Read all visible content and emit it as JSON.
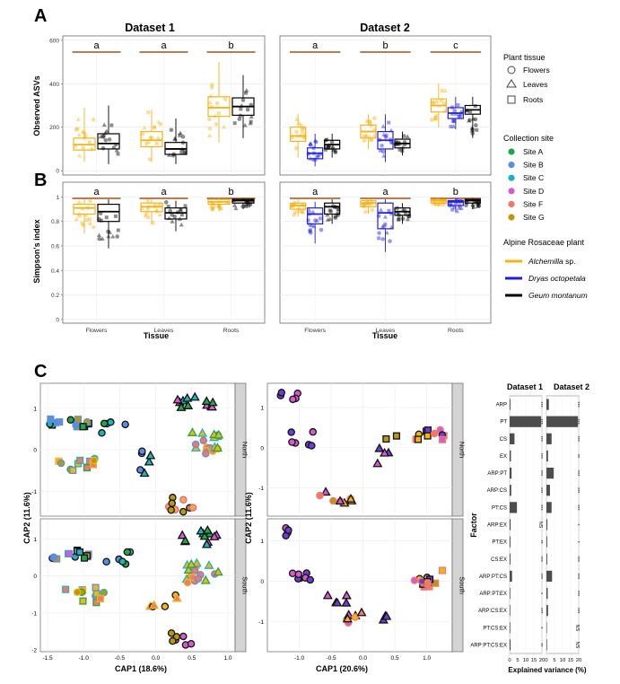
{
  "panel_labels": {
    "a": "A",
    "b": "B",
    "c": "C"
  },
  "legend": {
    "plant_tissue_title": "Plant tissue",
    "tissues": [
      "Flowers",
      "Leaves",
      "Roots"
    ],
    "site_title": "Collection site",
    "sites": [
      {
        "label": "Site A",
        "color": "#1fa64a"
      },
      {
        "label": "Site B",
        "color": "#5b8fdc"
      },
      {
        "label": "Site C",
        "color": "#22b2b6"
      },
      {
        "label": "Site D",
        "color": "#d75bd0"
      },
      {
        "label": "Site F",
        "color": "#f07a6a"
      },
      {
        "label": "Site G",
        "color": "#b8990e"
      }
    ],
    "plant_title": "Alpine Rosaceae plant",
    "plants": [
      {
        "label": "Alchemilla",
        "suffix": " sp.",
        "color": "#f5b31a"
      },
      {
        "label": "Dryas octopetala",
        "suffix": "",
        "color": "#1f1fd6"
      },
      {
        "label": "Geum montanum",
        "suffix": "",
        "color": "#000000"
      }
    ]
  },
  "chart_data": [
    {
      "type": "box",
      "id": "A",
      "ylabel": "Observed ASVs",
      "xlabel": "Tissue",
      "ylim": [
        -20,
        620
      ],
      "yticks": [
        0,
        200,
        400,
        600
      ],
      "facets": [
        {
          "title": "Dataset 1",
          "categories": [
            "Flowers",
            "Leaves",
            "Roots"
          ],
          "letters": [
            "a",
            "a",
            "b"
          ],
          "boxes": [
            {
              "tissue": "Flowers",
              "plant": "Alchemilla",
              "q1": 95,
              "med": 120,
              "q3": 150,
              "lo": 40,
              "hi": 290
            },
            {
              "tissue": "Flowers",
              "plant": "Geum montanum",
              "q1": 100,
              "med": 125,
              "q3": 170,
              "lo": 30,
              "hi": 300
            },
            {
              "tissue": "Leaves",
              "plant": "Alchemilla",
              "q1": 110,
              "med": 140,
              "q3": 180,
              "lo": 40,
              "hi": 280
            },
            {
              "tissue": "Leaves",
              "plant": "Geum montanum",
              "q1": 75,
              "med": 100,
              "q3": 130,
              "lo": 30,
              "hi": 240
            },
            {
              "tissue": "Roots",
              "plant": "Alchemilla",
              "q1": 250,
              "med": 290,
              "q3": 340,
              "lo": 130,
              "hi": 500
            },
            {
              "tissue": "Roots",
              "plant": "Geum montanum",
              "q1": 255,
              "med": 295,
              "q3": 335,
              "lo": 150,
              "hi": 440
            }
          ]
        },
        {
          "title": "Dataset 2",
          "categories": [
            "Flowers",
            "Leaves",
            "Roots"
          ],
          "letters": [
            "a",
            "b",
            "c"
          ],
          "boxes": [
            {
              "tissue": "Flowers",
              "plant": "Alchemilla",
              "q1": 135,
              "med": 160,
              "q3": 200,
              "lo": 60,
              "hi": 260
            },
            {
              "tissue": "Flowers",
              "plant": "Dryas octopetala",
              "q1": 55,
              "med": 80,
              "q3": 105,
              "lo": 20,
              "hi": 170
            },
            {
              "tissue": "Flowers",
              "plant": "Geum montanum",
              "q1": 100,
              "med": 120,
              "q3": 140,
              "lo": 60,
              "hi": 170
            },
            {
              "tissue": "Leaves",
              "plant": "Alchemilla",
              "q1": 150,
              "med": 180,
              "q3": 210,
              "lo": 100,
              "hi": 260
            },
            {
              "tissue": "Leaves",
              "plant": "Dryas octopetala",
              "q1": 100,
              "med": 140,
              "q3": 180,
              "lo": 40,
              "hi": 260
            },
            {
              "tissue": "Leaves",
              "plant": "Geum montanum",
              "q1": 105,
              "med": 125,
              "q3": 145,
              "lo": 70,
              "hi": 180
            },
            {
              "tissue": "Roots",
              "plant": "Alchemilla",
              "q1": 270,
              "med": 300,
              "q3": 330,
              "lo": 200,
              "hi": 400
            },
            {
              "tissue": "Roots",
              "plant": "Dryas octopetala",
              "q1": 240,
              "med": 265,
              "q3": 290,
              "lo": 190,
              "hi": 340
            },
            {
              "tissue": "Roots",
              "plant": "Geum montanum",
              "q1": 260,
              "med": 280,
              "q3": 300,
              "lo": 150,
              "hi": 340
            }
          ]
        }
      ]
    },
    {
      "type": "box",
      "id": "B",
      "ylabel": "Simpson's index",
      "xlabel": "Tissue",
      "ylim": [
        -0.03,
        1.12
      ],
      "yticks": [
        0.0,
        0.2,
        0.4,
        0.6,
        0.8,
        1.0
      ],
      "facets": [
        {
          "title": "Dataset 1",
          "categories": [
            "Flowers",
            "Leaves",
            "Roots"
          ],
          "letters": [
            "a",
            "a",
            "b"
          ],
          "boxes": [
            {
              "tissue": "Flowers",
              "plant": "Alchemilla",
              "q1": 0.86,
              "med": 0.91,
              "q3": 0.94,
              "lo": 0.7,
              "hi": 0.98
            },
            {
              "tissue": "Flowers",
              "plant": "Geum montanum",
              "q1": 0.8,
              "med": 0.88,
              "q3": 0.94,
              "lo": 0.58,
              "hi": 0.98
            },
            {
              "tissue": "Leaves",
              "plant": "Alchemilla",
              "q1": 0.88,
              "med": 0.92,
              "q3": 0.95,
              "lo": 0.78,
              "hi": 0.98
            },
            {
              "tissue": "Leaves",
              "plant": "Geum montanum",
              "q1": 0.82,
              "med": 0.87,
              "q3": 0.91,
              "lo": 0.72,
              "hi": 0.97
            },
            {
              "tissue": "Roots",
              "plant": "Alchemilla",
              "q1": 0.94,
              "med": 0.96,
              "q3": 0.98,
              "lo": 0.88,
              "hi": 0.99
            },
            {
              "tissue": "Roots",
              "plant": "Geum montanum",
              "q1": 0.95,
              "med": 0.97,
              "q3": 0.98,
              "lo": 0.9,
              "hi": 0.99
            }
          ]
        },
        {
          "title": "Dataset 2",
          "categories": [
            "Flowers",
            "Leaves",
            "Roots"
          ],
          "letters": [
            "a",
            "a",
            "b"
          ],
          "boxes": [
            {
              "tissue": "Flowers",
              "plant": "Alchemilla",
              "q1": 0.9,
              "med": 0.93,
              "q3": 0.95,
              "lo": 0.84,
              "hi": 0.98
            },
            {
              "tissue": "Flowers",
              "plant": "Dryas octopetala",
              "q1": 0.78,
              "med": 0.86,
              "q3": 0.91,
              "lo": 0.62,
              "hi": 0.96
            },
            {
              "tissue": "Flowers",
              "plant": "Geum montanum",
              "q1": 0.86,
              "med": 0.92,
              "q3": 0.95,
              "lo": 0.78,
              "hi": 0.98
            },
            {
              "tissue": "Leaves",
              "plant": "Alchemilla",
              "q1": 0.92,
              "med": 0.95,
              "q3": 0.97,
              "lo": 0.86,
              "hi": 0.99
            },
            {
              "tissue": "Leaves",
              "plant": "Dryas octopetala",
              "q1": 0.74,
              "med": 0.87,
              "q3": 0.95,
              "lo": 0.55,
              "hi": 0.98
            },
            {
              "tissue": "Leaves",
              "plant": "Geum montanum",
              "q1": 0.85,
              "med": 0.88,
              "q3": 0.91,
              "lo": 0.78,
              "hi": 0.95
            },
            {
              "tissue": "Roots",
              "plant": "Alchemilla",
              "q1": 0.95,
              "med": 0.97,
              "q3": 0.98,
              "lo": 0.92,
              "hi": 0.99
            },
            {
              "tissue": "Roots",
              "plant": "Dryas octopetala",
              "q1": 0.93,
              "med": 0.96,
              "q3": 0.97,
              "lo": 0.88,
              "hi": 0.99
            },
            {
              "tissue": "Roots",
              "plant": "Geum montanum",
              "q1": 0.95,
              "med": 0.97,
              "q3": 0.98,
              "lo": 0.9,
              "hi": 0.99
            }
          ]
        }
      ]
    },
    {
      "type": "scatter",
      "id": "C-dataset1",
      "xlabel": "CAP1 (18.6%)",
      "ylabel": "CAP2 (11.6%)",
      "xlim": [
        -1.6,
        1.1
      ],
      "xticks": [
        -1.5,
        -1.0,
        -0.5,
        0.0,
        0.5,
        1.0
      ],
      "strips": [
        {
          "label": "North",
          "ylim": [
            -1.6,
            1.6
          ],
          "yticks": [
            -1,
            0,
            1
          ]
        },
        {
          "label": "South",
          "ylim": [
            -2.05,
            1.55
          ],
          "yticks": [
            -2,
            -1,
            0,
            1
          ]
        }
      ]
    },
    {
      "type": "scatter",
      "id": "C-dataset2",
      "xlabel": "CAP1 (20.6%)",
      "ylabel": "CAP2 (11.6%)",
      "xlim": [
        -1.5,
        1.4
      ],
      "xticks": [
        -1.0,
        -0.5,
        0.0,
        0.5,
        1.0
      ],
      "strips": [
        {
          "label": "North",
          "ylim": [
            -1.7,
            1.6
          ],
          "yticks": [
            -1,
            0,
            1
          ]
        },
        {
          "label": "South",
          "ylim": [
            -1.75,
            1.55
          ],
          "yticks": [
            -1,
            0,
            1
          ]
        }
      ]
    },
    {
      "type": "bar",
      "id": "C-variance",
      "xlabel": "Explained variance (%)",
      "ylabel": "Factor",
      "xlim": [
        0,
        20
      ],
      "xticks": [
        0,
        5,
        10,
        15,
        20
      ],
      "categories": [
        "ARP",
        "PT",
        "CS",
        "EX",
        "ARP:PT",
        "ARP:CS",
        "PT:CS",
        "ARP:EX",
        "PT:EX",
        "CS:EX",
        "ARP:PT:CS",
        "ARP:PT:EX",
        "ARP:CS:EX",
        "PT:CS:EX",
        "ARP:PT:CS:EX"
      ],
      "series": [
        {
          "name": "Dataset 1",
          "values": [
            0.5,
            19.5,
            3.0,
            0.8,
            1.2,
            1.0,
            4.5,
            0.6,
            0.5,
            0.5,
            1.5,
            0.4,
            0.4,
            0.4,
            0.6
          ],
          "signif": [
            "***",
            "***",
            "***",
            "***",
            "***",
            "***",
            "***",
            "NS",
            "**",
            "***",
            "***",
            "*",
            "***",
            "*",
            "**"
          ]
        },
        {
          "name": "Dataset 2",
          "values": [
            1.5,
            19.5,
            3.2,
            1.0,
            4.5,
            2.2,
            3.2,
            0.6,
            0.5,
            0.5,
            3.5,
            0.8,
            1.0,
            0.3,
            0.4
          ],
          "signif": [
            "***",
            "***",
            "***",
            "**",
            "***",
            "***",
            "***",
            "*",
            "*",
            "***",
            "***",
            "***",
            "***",
            "NS",
            "NS"
          ]
        }
      ]
    }
  ]
}
